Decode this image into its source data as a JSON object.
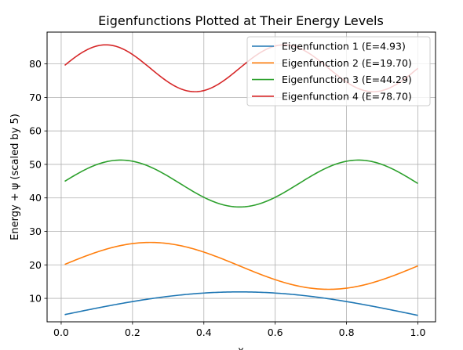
{
  "chart_data": {
    "type": "line",
    "title": "Eigenfunctions Plotted at Their Energy Levels",
    "xlabel": "x",
    "ylabel": "Energy + ψ (scaled by 5)",
    "xlim": [
      -0.0395,
      1.0495
    ],
    "ylim": [
      3.0,
      89.5
    ],
    "x_range": [
      0.01,
      1.0
    ],
    "amplitude": 7.0,
    "grid": true,
    "legend_position": "top-right",
    "xticks": [
      "0.0",
      "0.2",
      "0.4",
      "0.6",
      "0.8",
      "1.0"
    ],
    "yticks": [
      "10",
      "20",
      "30",
      "40",
      "50",
      "60",
      "70",
      "80"
    ],
    "series": [
      {
        "name": "Eigenfunction 1 (E=4.93)",
        "mode": 1,
        "energy": 4.93,
        "color": "#1f77b4"
      },
      {
        "name": "Eigenfunction 2 (E=19.70)",
        "mode": 2,
        "energy": 19.7,
        "color": "#ff7f0e"
      },
      {
        "name": "Eigenfunction 3 (E=44.29)",
        "mode": 3,
        "energy": 44.29,
        "color": "#2ca02c"
      },
      {
        "name": "Eigenfunction 4 (E=78.70)",
        "mode": 4,
        "energy": 78.7,
        "color": "#d62728"
      }
    ]
  }
}
